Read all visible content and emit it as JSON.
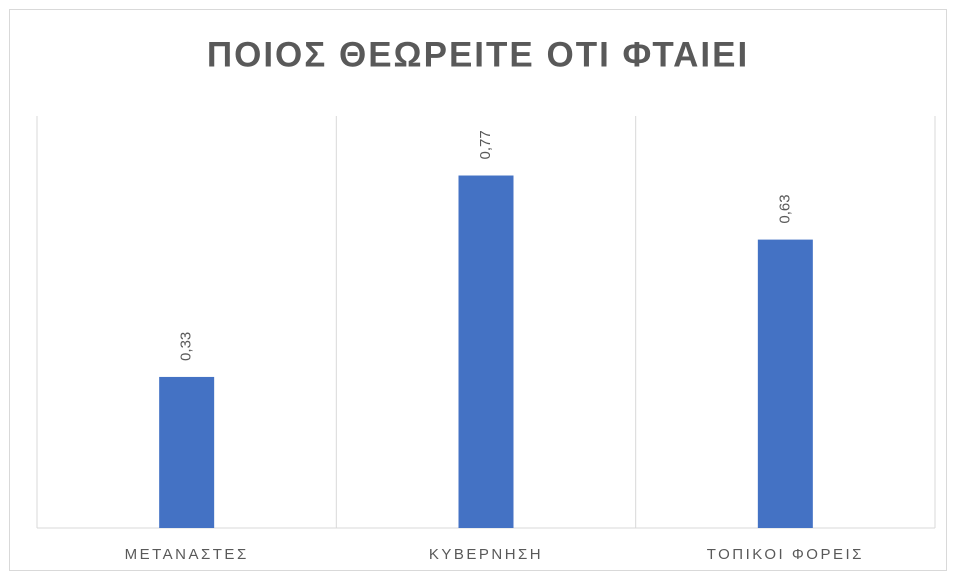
{
  "chart_data": {
    "type": "bar",
    "title": "ΠΟΙΟΣ ΘΕΩΡΕΙΤΕ ΟΤΙ ΦΤΑΙΕΙ",
    "categories": [
      "ΜΕΤΑΝΑΣΤΕΣ",
      "ΚΥΒΕΡΝΗΣΗ",
      "ΤΟΠΙΚΟΙ ΦΟΡΕΙΣ"
    ],
    "values": [
      0.33,
      0.77,
      0.63
    ],
    "value_labels": [
      "0,33",
      "0,77",
      "0,63"
    ],
    "color": "#4472c4",
    "ylim": [
      0,
      0.9
    ]
  }
}
